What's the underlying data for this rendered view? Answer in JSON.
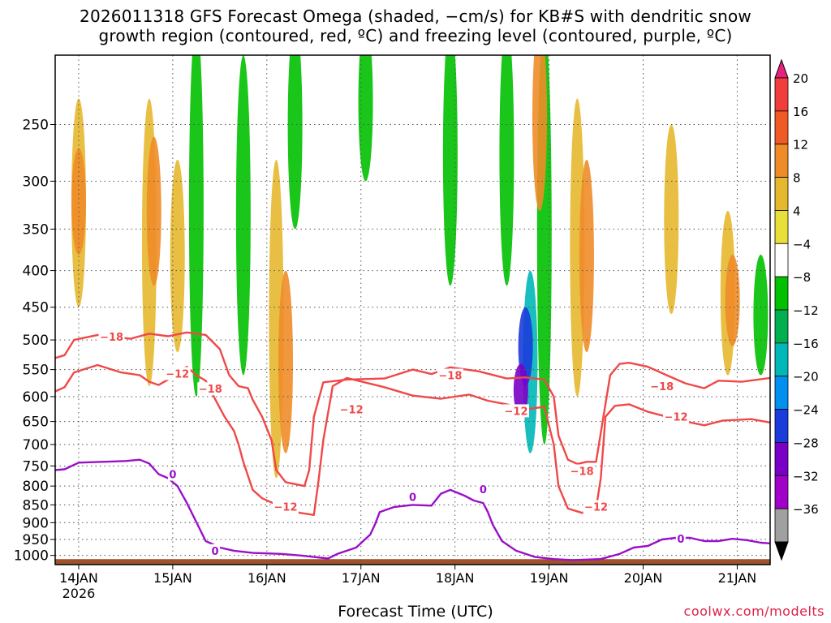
{
  "chart_data": {
    "type": "heatmap",
    "title_line1": "2026011318 GFS Forecast Omega (shaded, −cm/s) for KB#S with dendritic snow",
    "title_line2": "growth region (contoured, red, ºC) and freezing level (contoured, purple, ºC)",
    "xlabel": "Forecast Time (UTC)",
    "ylabel": "Pressure (hPa)",
    "credit": "coolwx.com/modelts",
    "x_range_days": [
      0,
      7.6
    ],
    "x_ticks": [
      {
        "day": 0.25,
        "label": "14JAN",
        "sub": "2026"
      },
      {
        "day": 1.25,
        "label": "15JAN",
        "sub": ""
      },
      {
        "day": 2.25,
        "label": "16JAN",
        "sub": ""
      },
      {
        "day": 3.25,
        "label": "17JAN",
        "sub": ""
      },
      {
        "day": 4.25,
        "label": "18JAN",
        "sub": ""
      },
      {
        "day": 5.25,
        "label": "19JAN",
        "sub": ""
      },
      {
        "day": 6.25,
        "label": "20JAN",
        "sub": ""
      },
      {
        "day": 7.25,
        "label": "21JAN",
        "sub": ""
      }
    ],
    "y_range_hpa": [
      200,
      1030
    ],
    "y_ticks": [
      250,
      300,
      350,
      400,
      450,
      500,
      550,
      600,
      650,
      700,
      750,
      800,
      850,
      900,
      950,
      1000
    ],
    "colorbar": {
      "labels": [
        "20",
        "16",
        "12",
        "8",
        "4",
        "−4",
        "−8",
        "−12",
        "−16",
        "−20",
        "−24",
        "−28",
        "−32",
        "−36"
      ],
      "colors": [
        "#e8207e",
        "#f23d3d",
        "#f05a24",
        "#f08c28",
        "#e6b82e",
        "#e8e038",
        "#ffffff",
        "#00c000",
        "#00b050",
        "#00b8b8",
        "#0090f0",
        "#1a3cdc",
        "#7a00c8",
        "#a000c8",
        "#a0a0a0",
        "#000000"
      ]
    },
    "series": [
      {
        "name": "-18C isotherm",
        "color": "#f04848",
        "label": "−18",
        "points": [
          [
            0,
            530
          ],
          [
            0.1,
            525
          ],
          [
            0.2,
            500
          ],
          [
            0.45,
            492
          ],
          [
            0.8,
            498
          ],
          [
            1.0,
            490
          ],
          [
            1.2,
            494
          ],
          [
            1.4,
            488
          ],
          [
            1.6,
            492
          ],
          [
            1.75,
            515
          ],
          [
            1.85,
            560
          ],
          [
            1.95,
            580
          ],
          [
            2.05,
            584
          ],
          [
            2.1,
            606
          ],
          [
            2.2,
            640
          ],
          [
            2.3,
            690
          ],
          [
            2.35,
            760
          ],
          [
            2.45,
            790
          ],
          [
            2.65,
            800
          ],
          [
            2.7,
            760
          ],
          [
            2.75,
            640
          ],
          [
            2.85,
            573
          ],
          [
            3.1,
            568
          ],
          [
            3.5,
            566
          ],
          [
            3.8,
            550
          ],
          [
            4.0,
            558
          ],
          [
            4.2,
            546
          ],
          [
            4.5,
            553
          ],
          [
            4.8,
            566
          ],
          [
            5.0,
            564
          ],
          [
            5.2,
            568
          ],
          [
            5.3,
            600
          ],
          [
            5.35,
            680
          ],
          [
            5.45,
            735
          ],
          [
            5.55,
            745
          ],
          [
            5.65,
            740
          ],
          [
            5.75,
            740
          ],
          [
            5.9,
            560
          ],
          [
            6.0,
            540
          ],
          [
            6.1,
            538
          ],
          [
            6.3,
            545
          ],
          [
            6.5,
            560
          ],
          [
            6.7,
            575
          ],
          [
            6.9,
            584
          ],
          [
            7.05,
            570
          ],
          [
            7.3,
            572
          ],
          [
            7.6,
            565
          ]
        ]
      },
      {
        "name": "-12C isotherm",
        "color": "#f04848",
        "label": "−12",
        "points": [
          [
            0,
            590
          ],
          [
            0.1,
            582
          ],
          [
            0.2,
            555
          ],
          [
            0.45,
            542
          ],
          [
            0.7,
            555
          ],
          [
            0.9,
            560
          ],
          [
            1.0,
            572
          ],
          [
            1.1,
            578
          ],
          [
            1.2,
            568
          ],
          [
            1.3,
            554
          ],
          [
            1.4,
            545
          ],
          [
            1.5,
            560
          ],
          [
            1.6,
            570
          ],
          [
            1.7,
            605
          ],
          [
            1.8,
            640
          ],
          [
            1.9,
            670
          ],
          [
            1.95,
            700
          ],
          [
            2.0,
            740
          ],
          [
            2.1,
            810
          ],
          [
            2.2,
            832
          ],
          [
            2.4,
            855
          ],
          [
            2.6,
            872
          ],
          [
            2.75,
            878
          ],
          [
            2.8,
            785
          ],
          [
            2.85,
            690
          ],
          [
            2.95,
            580
          ],
          [
            3.1,
            565
          ],
          [
            3.5,
            582
          ],
          [
            3.8,
            598
          ],
          [
            4.1,
            604
          ],
          [
            4.4,
            596
          ],
          [
            4.6,
            608
          ],
          [
            4.8,
            615
          ],
          [
            5.0,
            625
          ],
          [
            5.2,
            620
          ],
          [
            5.3,
            700
          ],
          [
            5.35,
            800
          ],
          [
            5.45,
            860
          ],
          [
            5.6,
            872
          ],
          [
            5.75,
            860
          ],
          [
            5.8,
            780
          ],
          [
            5.85,
            640
          ],
          [
            5.95,
            618
          ],
          [
            6.1,
            615
          ],
          [
            6.3,
            630
          ],
          [
            6.5,
            640
          ],
          [
            6.7,
            650
          ],
          [
            6.9,
            658
          ],
          [
            7.1,
            648
          ],
          [
            7.4,
            645
          ],
          [
            7.6,
            652
          ]
        ]
      },
      {
        "name": "0C freezing level",
        "color": "#9a10c8",
        "label": "0",
        "points": [
          [
            0,
            760
          ],
          [
            0.1,
            758
          ],
          [
            0.25,
            742
          ],
          [
            0.5,
            740
          ],
          [
            0.75,
            738
          ],
          [
            0.9,
            735
          ],
          [
            1.0,
            744
          ],
          [
            1.1,
            770
          ],
          [
            1.2,
            780
          ],
          [
            1.3,
            800
          ],
          [
            1.4,
            845
          ],
          [
            1.5,
            898
          ],
          [
            1.6,
            955
          ],
          [
            1.75,
            975
          ],
          [
            1.9,
            985
          ],
          [
            2.1,
            992
          ],
          [
            2.4,
            995
          ],
          [
            2.6,
            1000
          ],
          [
            2.9,
            1010
          ],
          [
            3.0,
            995
          ],
          [
            3.2,
            975
          ],
          [
            3.35,
            935
          ],
          [
            3.4,
            905
          ],
          [
            3.45,
            870
          ],
          [
            3.6,
            856
          ],
          [
            3.8,
            850
          ],
          [
            4.0,
            852
          ],
          [
            4.1,
            820
          ],
          [
            4.2,
            810
          ],
          [
            4.35,
            825
          ],
          [
            4.45,
            838
          ],
          [
            4.55,
            845
          ],
          [
            4.6,
            870
          ],
          [
            4.65,
            905
          ],
          [
            4.75,
            955
          ],
          [
            4.9,
            985
          ],
          [
            5.1,
            1005
          ],
          [
            5.3,
            1012
          ],
          [
            5.5,
            1015
          ],
          [
            5.8,
            1012
          ],
          [
            6.0,
            995
          ],
          [
            6.15,
            975
          ],
          [
            6.3,
            970
          ],
          [
            6.45,
            950
          ],
          [
            6.6,
            945
          ],
          [
            6.75,
            945
          ],
          [
            6.9,
            955
          ],
          [
            7.05,
            955
          ],
          [
            7.2,
            948
          ],
          [
            7.35,
            952
          ],
          [
            7.5,
            960
          ],
          [
            7.6,
            962
          ]
        ]
      }
    ],
    "contour_labels": [
      {
        "text": "−18",
        "day": 0.6,
        "p": 495
      },
      {
        "text": "−12",
        "day": 1.3,
        "p": 557
      },
      {
        "text": "−18",
        "day": 1.65,
        "p": 585
      },
      {
        "text": "−12",
        "day": 2.45,
        "p": 855
      },
      {
        "text": "−12",
        "day": 3.15,
        "p": 625
      },
      {
        "text": "−18",
        "day": 4.2,
        "p": 560
      },
      {
        "text": "−12",
        "day": 4.9,
        "p": 628
      },
      {
        "text": "−18",
        "day": 5.6,
        "p": 762
      },
      {
        "text": "−12",
        "day": 5.75,
        "p": 855
      },
      {
        "text": "−18",
        "day": 6.45,
        "p": 580
      },
      {
        "text": "−12",
        "day": 6.6,
        "p": 640
      },
      {
        "text": "0",
        "day": 1.25,
        "p": 770
      },
      {
        "text": "0",
        "day": 1.7,
        "p": 985
      },
      {
        "text": "0",
        "day": 3.8,
        "p": 828
      },
      {
        "text": "0",
        "day": 4.55,
        "p": 808
      },
      {
        "text": "0",
        "day": 6.65,
        "p": 948
      }
    ],
    "omega_features": [
      {
        "day": 0.25,
        "p_top": 230,
        "p_bot": 450,
        "color": "#e6b82e"
      },
      {
        "day": 0.25,
        "p_top": 270,
        "p_bot": 380,
        "color": "#f08c28"
      },
      {
        "day": 1.0,
        "p_top": 230,
        "p_bot": 580,
        "color": "#e6b82e"
      },
      {
        "day": 1.05,
        "p_top": 260,
        "p_bot": 420,
        "color": "#f08c28"
      },
      {
        "day": 1.3,
        "p_top": 280,
        "p_bot": 520,
        "color": "#e6b82e"
      },
      {
        "day": 1.5,
        "p_top": 180,
        "p_bot": 600,
        "color": "#00c000"
      },
      {
        "day": 2.0,
        "p_top": 200,
        "p_bot": 560,
        "color": "#00c000"
      },
      {
        "day": 2.35,
        "p_top": 280,
        "p_bot": 780,
        "color": "#e6b82e"
      },
      {
        "day": 2.45,
        "p_top": 400,
        "p_bot": 720,
        "color": "#f08c28"
      },
      {
        "day": 2.55,
        "p_top": 180,
        "p_bot": 350,
        "color": "#00c000"
      },
      {
        "day": 3.3,
        "p_top": 180,
        "p_bot": 300,
        "color": "#00c000"
      },
      {
        "day": 4.2,
        "p_top": 180,
        "p_bot": 420,
        "color": "#00c000"
      },
      {
        "day": 4.8,
        "p_top": 180,
        "p_bot": 420,
        "color": "#00c000"
      },
      {
        "day": 5.2,
        "p_top": 180,
        "p_bot": 700,
        "color": "#00c000"
      },
      {
        "day": 5.05,
        "p_top": 400,
        "p_bot": 720,
        "color": "#00b8b8"
      },
      {
        "day": 5.0,
        "p_top": 450,
        "p_bot": 580,
        "color": "#1a3cdc"
      },
      {
        "day": 4.95,
        "p_top": 540,
        "p_bot": 640,
        "color": "#7a00c8"
      },
      {
        "day": 5.15,
        "p_top": 180,
        "p_bot": 330,
        "color": "#f08c28"
      },
      {
        "day": 5.15,
        "p_top": 180,
        "p_bot": 200,
        "color": "#f23d3d"
      },
      {
        "day": 5.55,
        "p_top": 230,
        "p_bot": 600,
        "color": "#e6b82e"
      },
      {
        "day": 5.65,
        "p_top": 280,
        "p_bot": 520,
        "color": "#f08c28"
      },
      {
        "day": 6.55,
        "p_top": 250,
        "p_bot": 460,
        "color": "#e6b82e"
      },
      {
        "day": 7.15,
        "p_top": 330,
        "p_bot": 560,
        "color": "#e6b82e"
      },
      {
        "day": 7.2,
        "p_top": 380,
        "p_bot": 510,
        "color": "#f08c28"
      },
      {
        "day": 7.5,
        "p_top": 380,
        "p_bot": 560,
        "color": "#00c000"
      }
    ]
  }
}
